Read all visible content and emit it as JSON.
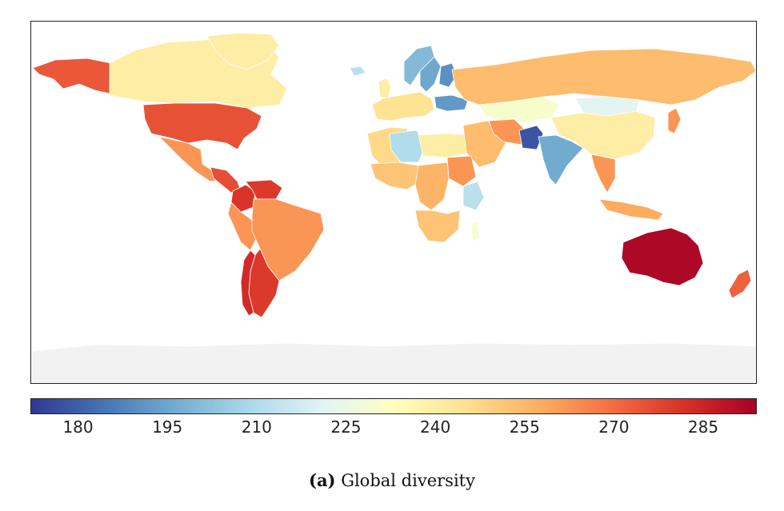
{
  "caption": {
    "label": "(a)",
    "text": "Global diversity"
  },
  "colorbar": {
    "min": 172,
    "max": 294,
    "ticks": [
      "180",
      "195",
      "210",
      "225",
      "240",
      "255",
      "270",
      "285"
    ],
    "colors": [
      "#313695",
      "#4575b4",
      "#74add1",
      "#abd9e9",
      "#e0f3f8",
      "#ffffbf",
      "#fee090",
      "#fdae61",
      "#f46d43",
      "#d73027",
      "#a50026"
    ]
  },
  "map_data": {
    "type": "choropleth",
    "nodata_color": "#f2f2f2",
    "regions": [
      {
        "name": "Alaska",
        "value": 274
      },
      {
        "name": "Canada",
        "value": 240
      },
      {
        "name": "Greenland",
        "value": 240
      },
      {
        "name": "United States",
        "value": 275
      },
      {
        "name": "Mexico",
        "value": 262
      },
      {
        "name": "Central America",
        "value": 276
      },
      {
        "name": "Colombia",
        "value": 281
      },
      {
        "name": "Venezuela",
        "value": 280
      },
      {
        "name": "Brazil",
        "value": 262
      },
      {
        "name": "Peru",
        "value": 262
      },
      {
        "name": "Argentina",
        "value": 280
      },
      {
        "name": "Chile",
        "value": 283
      },
      {
        "name": "Iceland",
        "value": 212
      },
      {
        "name": "United Kingdom",
        "value": 240
      },
      {
        "name": "Norway",
        "value": 200
      },
      {
        "name": "Sweden",
        "value": 195
      },
      {
        "name": "Finland",
        "value": 190
      },
      {
        "name": "Western Europe",
        "value": 244
      },
      {
        "name": "Ukraine",
        "value": 192
      },
      {
        "name": "Russia",
        "value": 254
      },
      {
        "name": "Kazakhstan",
        "value": 230
      },
      {
        "name": "Mongolia",
        "value": 222
      },
      {
        "name": "China",
        "value": 240
      },
      {
        "name": "Japan",
        "value": 262
      },
      {
        "name": "North Africa",
        "value": 247
      },
      {
        "name": "Algeria",
        "value": 210
      },
      {
        "name": "Libya & Egypt",
        "value": 240
      },
      {
        "name": "Middle East",
        "value": 254
      },
      {
        "name": "Iran",
        "value": 262
      },
      {
        "name": "Pakistan",
        "value": 178
      },
      {
        "name": "India",
        "value": 196
      },
      {
        "name": "Southeast Asia",
        "value": 262
      },
      {
        "name": "Indonesia",
        "value": 258
      },
      {
        "name": "West Africa",
        "value": 252
      },
      {
        "name": "Central Africa",
        "value": 256
      },
      {
        "name": "Sudan",
        "value": 262
      },
      {
        "name": "Kenya",
        "value": 212
      },
      {
        "name": "Southern Africa",
        "value": 252
      },
      {
        "name": "Madagascar",
        "value": 230
      },
      {
        "name": "Australia",
        "value": 292
      },
      {
        "name": "New Zealand",
        "value": 272
      }
    ]
  }
}
